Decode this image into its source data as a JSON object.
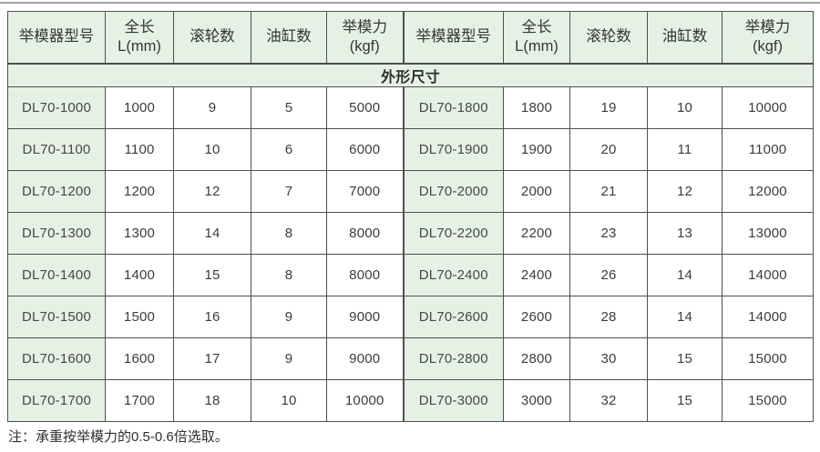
{
  "title": "外形尺寸",
  "table": {
    "headers": [
      "举模器型号",
      "全长\nL(mm)",
      "滚轮数",
      "油缸数",
      "举模力\n(kgf)"
    ],
    "rows": [
      {
        "left": [
          "DL70-1000",
          "1000",
          "9",
          "5",
          "5000"
        ],
        "right": [
          "DL70-1800",
          "1800",
          "19",
          "10",
          "10000"
        ]
      },
      {
        "left": [
          "DL70-1100",
          "1100",
          "10",
          "6",
          "6000"
        ],
        "right": [
          "DL70-1900",
          "1900",
          "20",
          "11",
          "11000"
        ]
      },
      {
        "left": [
          "DL70-1200",
          "1200",
          "12",
          "7",
          "7000"
        ],
        "right": [
          "DL70-2000",
          "2000",
          "21",
          "12",
          "12000"
        ]
      },
      {
        "left": [
          "DL70-1300",
          "1300",
          "14",
          "8",
          "8000"
        ],
        "right": [
          "DL70-2200",
          "2200",
          "23",
          "13",
          "13000"
        ]
      },
      {
        "left": [
          "DL70-1400",
          "1400",
          "15",
          "8",
          "8000"
        ],
        "right": [
          "DL70-2400",
          "2400",
          "26",
          "14",
          "14000"
        ]
      },
      {
        "left": [
          "DL70-1500",
          "1500",
          "16",
          "9",
          "9000"
        ],
        "right": [
          "DL70-2600",
          "2600",
          "28",
          "14",
          "14000"
        ]
      },
      {
        "left": [
          "DL70-1600",
          "1600",
          "17",
          "9",
          "9000"
        ],
        "right": [
          "DL70-2800",
          "2800",
          "30",
          "15",
          "15000"
        ]
      },
      {
        "left": [
          "DL70-1700",
          "1700",
          "18",
          "10",
          "10000"
        ],
        "right": [
          "DL70-3000",
          "3000",
          "32",
          "15",
          "15000"
        ]
      }
    ]
  },
  "note": "注：承重按举模力的0.5-0.6倍选取。",
  "colors": {
    "header_bg": "#e6f1e5",
    "model_cell_bg": "#e6f1e5",
    "border": "#4f4f4f",
    "text": "#3c3c3c",
    "top_rule": "#8f8f8f"
  }
}
